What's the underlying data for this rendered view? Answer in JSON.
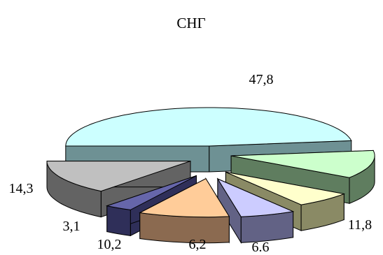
{
  "chart_data": {
    "type": "pie",
    "style": "3d-exploded",
    "title": "СНГ",
    "slices": [
      {
        "value_label": "47,8",
        "value": 47.8,
        "top_color": "#ccffff",
        "side_color": "#6e9194"
      },
      {
        "value_label": "11,8",
        "value": 11.8,
        "top_color": "#ccffcc",
        "side_color": "#5f7d5f"
      },
      {
        "value_label": "6.6",
        "value": 6.6,
        "top_color": "#ffffcc",
        "side_color": "#8a8a65"
      },
      {
        "value_label": "6,2",
        "value": 6.2,
        "top_color": "#ccccff",
        "side_color": "#626285"
      },
      {
        "value_label": "10,2",
        "value": 10.2,
        "top_color": "#ffcc99",
        "side_color": "#8b6a50"
      },
      {
        "value_label": "3,1",
        "value": 3.1,
        "top_color": "#6666aa",
        "side_color": "#2f2f59"
      },
      {
        "value_label": "14,3",
        "value": 14.3,
        "top_color": "#c0c0c0",
        "side_color": "#636363"
      }
    ],
    "grid": false,
    "legend": "none"
  }
}
